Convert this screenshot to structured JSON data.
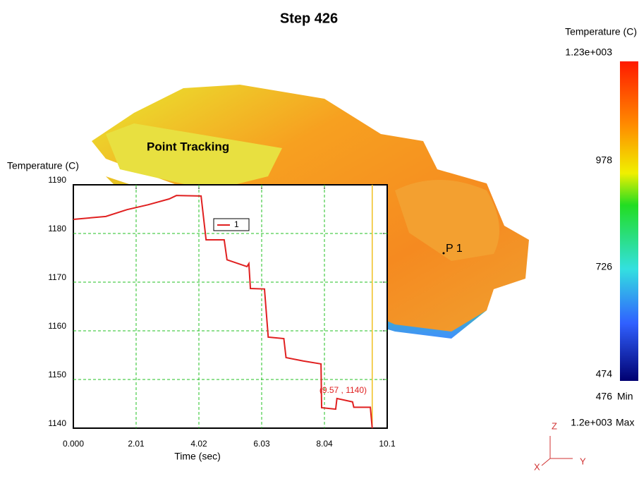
{
  "title": "Step 426",
  "overlay_label": "Point Tracking",
  "point_label": "P 1",
  "colorbar": {
    "title": "Temperature (C)",
    "labels": [
      "1.23e+003",
      "978",
      "726",
      "474"
    ],
    "min_value": "476",
    "min_label": "Min",
    "max_value": "1.2e+003",
    "max_label": "Max"
  },
  "triad": {
    "z": "Z",
    "y": "Y",
    "x": "X"
  },
  "chart_data": {
    "type": "line",
    "y_label": "Temperature (C)",
    "x_label": "Time (sec)",
    "x": [
      0,
      1.04,
      1.72,
      2.39,
      3.07,
      3.3,
      4.09,
      4.25,
      4.83,
      4.92,
      5.56,
      5.62,
      5.67,
      6.12,
      6.24,
      6.74,
      6.81,
      7.36,
      7.93,
      7.95,
      8.4,
      8.44,
      8.94,
      8.98,
      9.51,
      9.57
    ],
    "series": [
      {
        "name": "1",
        "color": "#e02020",
        "values": [
          1182.9,
          1183.5,
          1184.9,
          1185.9,
          1187.1,
          1187.8,
          1187.7,
          1178.7,
          1178.7,
          1174.6,
          1173.2,
          1173.8,
          1168.7,
          1168.6,
          1158.7,
          1158.4,
          1154.5,
          1153.8,
          1153.2,
          1144.2,
          1143.9,
          1146.1,
          1145.4,
          1144.3,
          1144.3,
          1140
        ]
      }
    ],
    "xlim": [
      0,
      10.05
    ],
    "ylim": [
      1140,
      1190
    ],
    "xticks": [
      {
        "value": 0,
        "label": "0.000"
      },
      2.01,
      4.02,
      6.03,
      8.04,
      {
        "value": 10.05,
        "label": "10.1"
      }
    ],
    "yticks": [
      1140,
      1150,
      1160,
      1170,
      1180,
      1190
    ],
    "grid": true,
    "annotation": "(9.57 , 1140)",
    "cursor_x": 9.57
  }
}
